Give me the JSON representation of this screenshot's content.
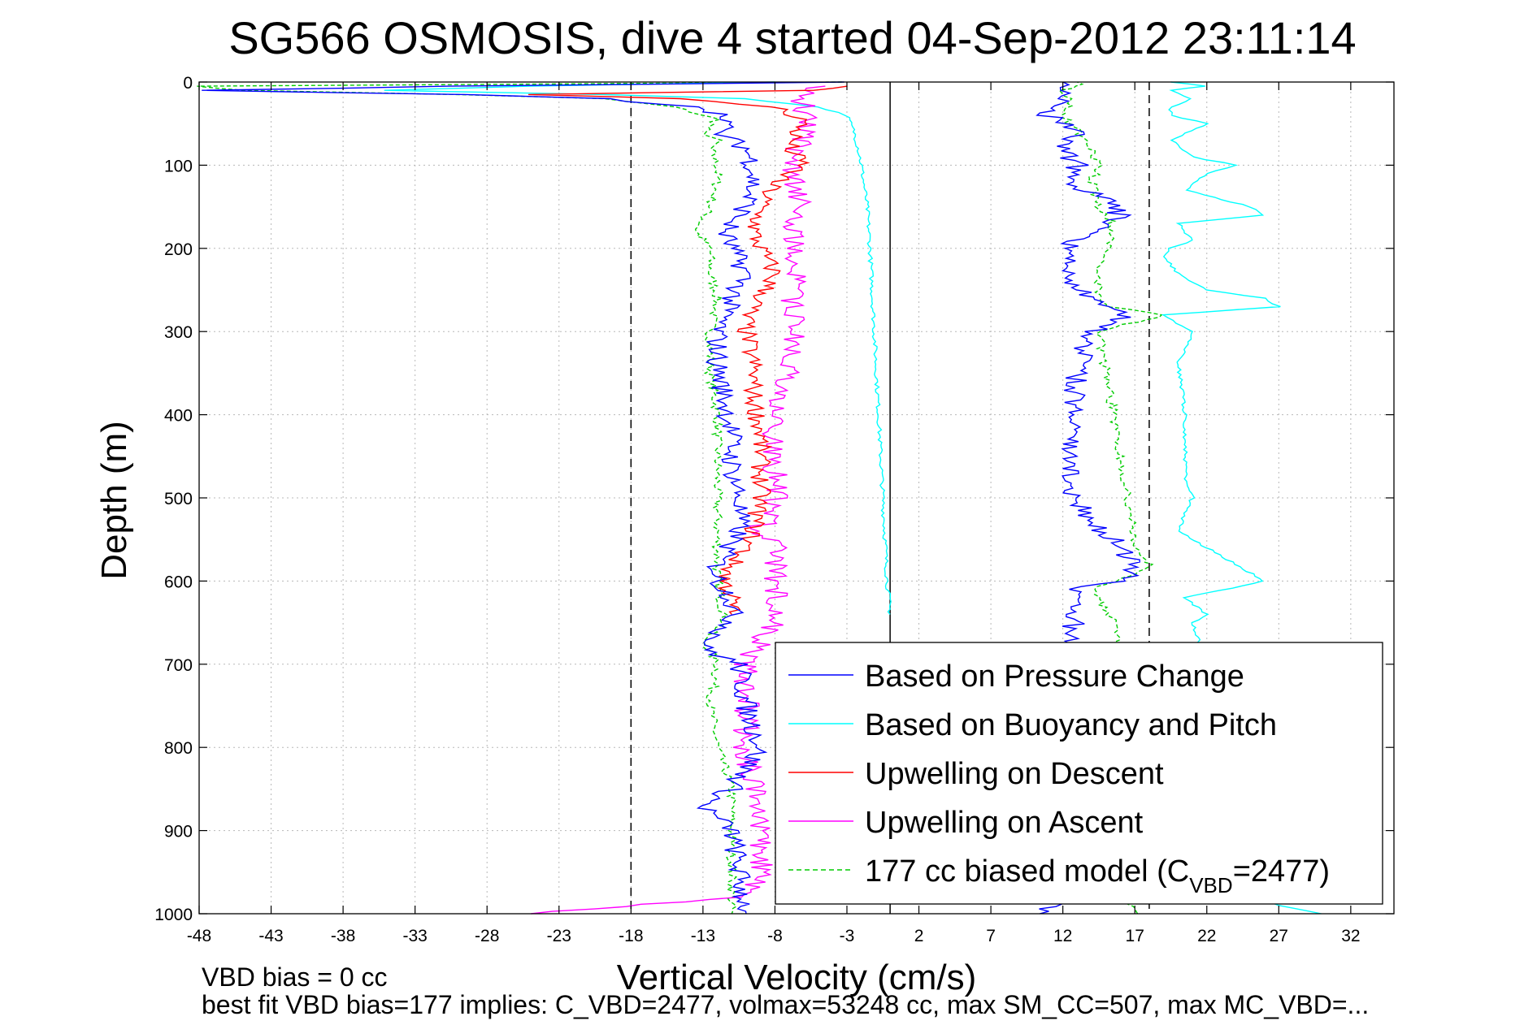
{
  "chart_data": {
    "type": "line",
    "title": "SG566 OSMOSIS, dive 4 started 04-Sep-2012 23:11:14",
    "xlabel": "Vertical Velocity (cm/s)",
    "ylabel": "Depth (m)",
    "xlim": [
      -48,
      35
    ],
    "ylim": [
      0,
      1000
    ],
    "y_reversed": true,
    "grid": true,
    "x_ticks": [
      -48,
      -43,
      -38,
      -33,
      -28,
      -23,
      -18,
      -13,
      -8,
      -3,
      2,
      7,
      12,
      17,
      22,
      27,
      32
    ],
    "x_tick_labels": [
      "-48",
      "-43",
      "-38",
      "-33",
      "-28",
      "-23",
      "-18",
      "-13",
      "-8",
      "-3",
      "2",
      "7",
      "12",
      "17",
      "22",
      "27",
      "32"
    ],
    "y_ticks": [
      0,
      100,
      200,
      300,
      400,
      500,
      600,
      700,
      800,
      900,
      1000
    ],
    "y_tick_labels": [
      "0",
      "100",
      "200",
      "300",
      "400",
      "500",
      "600",
      "700",
      "800",
      "900",
      "1000"
    ],
    "reference_lines": [
      {
        "x": -18,
        "style": "dashed",
        "color": "#000000"
      },
      {
        "x": 0,
        "style": "solid",
        "color": "#000000"
      },
      {
        "x": 18,
        "style": "dashed",
        "color": "#000000"
      }
    ],
    "legend": {
      "position": "bottom-right",
      "entries": [
        {
          "label": "Based on Pressure Change",
          "color": "#0000ff",
          "style": "solid"
        },
        {
          "label": "Based on Buoyancy and Pitch",
          "color": "#00ffff",
          "style": "solid"
        },
        {
          "label": "Upwelling on Descent",
          "color": "#ff0000",
          "style": "solid"
        },
        {
          "label": "Upwelling on Ascent",
          "color": "#ff00ff",
          "style": "solid"
        },
        {
          "label_main": "177 cc biased model (C",
          "label_sub": "VBD",
          "label_tail": "=2477)",
          "color": "#00cc00",
          "style": "dashed"
        }
      ]
    },
    "series": [
      {
        "name": "Based on Pressure Change",
        "color": "#0000ff",
        "descent": {
          "depth": [
            0,
            5,
            10,
            15,
            20,
            30,
            45,
            60,
            80,
            100,
            120,
            150,
            180,
            200,
            230,
            260,
            280,
            300,
            340,
            380,
            420,
            460,
            500,
            540,
            580,
            600,
            620,
            650,
            680,
            700,
            750,
            800,
            850,
            870,
            900,
            950,
            1000
          ],
          "velocity": [
            -3,
            -30,
            -48,
            -30,
            -20,
            -13,
            -11,
            -12,
            -10,
            -9.5,
            -9.5,
            -10,
            -11.5,
            -11,
            -10,
            -11,
            -11.5,
            -12,
            -12,
            -11.5,
            -11,
            -11,
            -10.5,
            -10.5,
            -12,
            -12,
            -11,
            -11,
            -13,
            -10.5,
            -10,
            -9,
            -11,
            -13,
            -11,
            -10.5,
            -10
          ]
        },
        "ascent": {
          "depth": [
            1000,
            980,
            950,
            900,
            850,
            800,
            750,
            700,
            660,
            640,
            610,
            600,
            590,
            580,
            560,
            500,
            450,
            400,
            350,
            320,
            300,
            280,
            270,
            250,
            230,
            200,
            180,
            160,
            140,
            120,
            100,
            80,
            60,
            40,
            20,
            10,
            0
          ],
          "velocity": [
            10,
            12,
            12.5,
            12.5,
            12.5,
            12.5,
            12.5,
            12.5,
            12.5,
            13,
            13,
            16,
            17,
            17,
            16,
            12.5,
            12.5,
            12.5,
            13,
            13.5,
            14,
            16.5,
            14.5,
            13,
            12.5,
            12,
            14,
            16,
            15,
            12,
            13,
            12,
            13,
            11,
            12,
            12.5,
            12
          ]
        }
      },
      {
        "name": "Based on Buoyancy and Pitch",
        "color": "#00ffff",
        "descent": {
          "depth": [
            0,
            5,
            10,
            15,
            20,
            30,
            40,
            60,
            80,
            100,
            150,
            200,
            300,
            400,
            500,
            600,
            640
          ],
          "velocity": [
            -8,
            -25,
            -35,
            -20,
            -10,
            -5,
            -3,
            -2.5,
            -2.2,
            -2,
            -1.6,
            -1.4,
            -1.1,
            -0.8,
            -0.5,
            -0.2,
            0
          ]
        },
        "ascent": {
          "depth": [
            1000,
            990,
            960,
            900,
            800,
            700,
            650,
            640,
            620,
            600,
            580,
            560,
            540,
            500,
            480,
            460,
            400,
            340,
            300,
            290,
            280,
            270,
            260,
            250,
            230,
            210,
            200,
            190,
            170,
            160,
            150,
            130,
            110,
            100,
            90,
            70,
            50,
            40,
            30,
            20,
            10,
            5,
            0
          ],
          "velocity": [
            30,
            27,
            22,
            22,
            22,
            22,
            21,
            22,
            20.5,
            26,
            24,
            22,
            20,
            21,
            20.5,
            20.5,
            20.5,
            20,
            21,
            20,
            19,
            27,
            26,
            22,
            20,
            19,
            19.5,
            21,
            20,
            26,
            25,
            20.5,
            22,
            24,
            21,
            19.5,
            22,
            19.5,
            19.5,
            21,
            19.5,
            22,
            19.5
          ]
        }
      },
      {
        "name": "Upwelling on Descent",
        "color": "#ff0000",
        "depth": [
          5,
          10,
          15,
          20,
          30,
          45,
          60,
          80,
          100,
          120,
          150,
          180,
          200,
          230,
          260,
          280,
          300,
          340,
          380,
          420,
          460,
          500,
          540,
          560,
          580,
          600,
          620,
          640
        ],
        "velocity": [
          -3,
          -5,
          -25,
          -15,
          -8,
          -6,
          -6.5,
          -7,
          -6,
          -8,
          -9,
          -9.5,
          -9,
          -8,
          -9,
          -10,
          -10,
          -9.5,
          -9.5,
          -9,
          -9,
          -9,
          -9.5,
          -10,
          -11,
          -11.5,
          -11,
          -11
        ]
      },
      {
        "name": "Upwelling on Ascent",
        "color": "#ff00ff",
        "depth": [
          1000,
          980,
          950,
          900,
          850,
          800,
          750,
          700,
          650,
          600,
          560,
          540,
          500,
          460,
          420,
          380,
          340,
          300,
          280,
          260,
          240,
          200,
          180,
          150,
          120,
          100,
          80,
          60,
          40,
          20,
          10,
          5
        ],
        "velocity": [
          -25,
          -10,
          -9,
          -9,
          -9.5,
          -10,
          -10,
          -10,
          -8,
          -8,
          -8,
          -9,
          -8,
          -8,
          -8,
          -7.5,
          -7,
          -6.5,
          -6.5,
          -7,
          -6.5,
          -6.5,
          -7,
          -6,
          -6.5,
          -7,
          -6.5,
          -6,
          -6,
          -6,
          -5.5,
          -4.5
        ]
      },
      {
        "name": "177 cc biased model (CVBD=2477)",
        "color": "#00cc00",
        "descent": {
          "depth": [
            0,
            5,
            10,
            15,
            20,
            30,
            45,
            60,
            70,
            80,
            100,
            120,
            150,
            180,
            200,
            230,
            260,
            300,
            350,
            400,
            450,
            500,
            550,
            600,
            650,
            670,
            700,
            750,
            800,
            850,
            900,
            950,
            1000
          ],
          "velocity": [
            -3,
            -48,
            -45,
            -30,
            -20,
            -15,
            -12,
            -13,
            -12,
            -12.5,
            -12,
            -12,
            -12.5,
            -13.5,
            -12.5,
            -12.5,
            -12,
            -12.5,
            -12.5,
            -12,
            -12,
            -12,
            -12,
            -12,
            -11.5,
            -13,
            -12,
            -12.5,
            -12,
            -11,
            -11,
            -11,
            -11
          ]
        },
        "ascent": {
          "depth": [
            1000,
            950,
            900,
            850,
            800,
            750,
            700,
            650,
            610,
            600,
            580,
            560,
            500,
            450,
            400,
            350,
            300,
            280,
            270,
            250,
            230,
            200,
            170,
            150,
            120,
            100,
            80,
            60,
            40,
            20,
            10,
            5,
            0
          ],
          "velocity": [
            17,
            16,
            16,
            16,
            16,
            16,
            16,
            15.5,
            14,
            16,
            18,
            17,
            16.5,
            16,
            15.5,
            15,
            14.5,
            19,
            15,
            14.5,
            14.5,
            15,
            15.5,
            14.5,
            14,
            14.5,
            14,
            13,
            12,
            12.5,
            12,
            13,
            13
          ]
        }
      }
    ]
  },
  "footer": {
    "line1": "VBD bias = 0 cc",
    "line2": "best fit VBD bias=177 implies: C_VBD=2477, volmax=53248 cc, max SM_CC=507, max MC_VBD=..."
  }
}
